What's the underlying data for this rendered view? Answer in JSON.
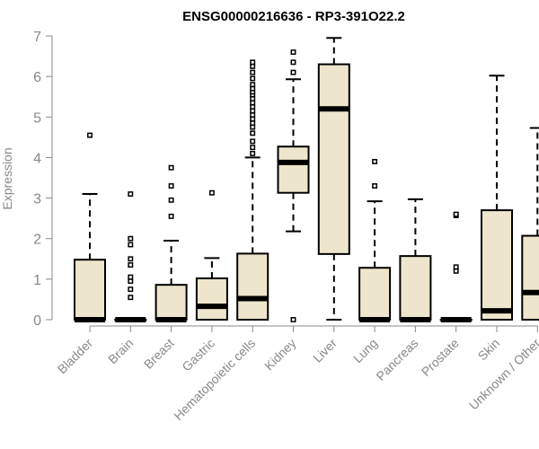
{
  "chart_data": {
    "type": "boxplot",
    "title": "ENSG00000216636 - RP3-391O22.2",
    "xlabel": "",
    "ylabel": "Expression",
    "ylim": [
      0,
      7
    ],
    "yticks": [
      0,
      1,
      2,
      3,
      4,
      5,
      6,
      7
    ],
    "grid": false,
    "categories": [
      "Bladder",
      "Brain",
      "Breast",
      "Gastric",
      "Hematopoietic cells",
      "Kidney",
      "Liver",
      "Lung",
      "Pancreas",
      "Prostate",
      "Skin",
      "Unknown / Other"
    ],
    "boxes": [
      {
        "category": "Bladder",
        "whisker_low": 0,
        "q1": 0,
        "median": 0,
        "q3": 1.48,
        "whisker_high": 3.1,
        "outliers": [
          4.55
        ]
      },
      {
        "category": "Brain",
        "whisker_low": 0,
        "q1": 0,
        "median": 0,
        "q3": 0,
        "whisker_high": 0,
        "outliers": [
          0.55,
          0.75,
          0.95,
          1.05,
          1.35,
          1.5,
          1.85,
          2.0,
          3.1
        ]
      },
      {
        "category": "Breast",
        "whisker_low": 0,
        "q1": 0,
        "median": 0,
        "q3": 0.86,
        "whisker_high": 1.95,
        "outliers": [
          2.55,
          2.95,
          3.3,
          3.75
        ]
      },
      {
        "category": "Gastric",
        "whisker_low": 0,
        "q1": 0,
        "median": 0.33,
        "q3": 1.02,
        "whisker_high": 1.52,
        "outliers": [
          3.13
        ]
      },
      {
        "category": "Hematopoietic cells",
        "whisker_low": 0,
        "q1": 0,
        "median": 0.52,
        "q3": 1.63,
        "whisker_high": 4.0,
        "outliers": [
          4.1,
          4.25,
          4.4,
          4.6,
          4.75,
          4.85,
          4.95,
          5.05,
          5.15,
          5.25,
          5.35,
          5.45,
          5.55,
          5.62,
          5.7,
          5.8,
          5.95,
          6.1,
          6.25,
          6.35
        ]
      },
      {
        "category": "Kidney",
        "whisker_low": 2.18,
        "q1": 3.13,
        "median": 3.88,
        "q3": 4.27,
        "whisker_high": 5.93,
        "outliers": [
          0,
          6.1,
          6.35,
          6.6
        ]
      },
      {
        "category": "Liver",
        "whisker_low": 0,
        "q1": 1.62,
        "median": 5.2,
        "q3": 6.3,
        "whisker_high": 6.95,
        "outliers": []
      },
      {
        "category": "Lung",
        "whisker_low": 0,
        "q1": 0,
        "median": 0,
        "q3": 1.28,
        "whisker_high": 2.92,
        "outliers": [
          3.3,
          3.9
        ]
      },
      {
        "category": "Pancreas",
        "whisker_low": 0,
        "q1": 0,
        "median": 0,
        "q3": 1.57,
        "whisker_high": 2.97,
        "outliers": []
      },
      {
        "category": "Prostate",
        "whisker_low": 0,
        "q1": 0,
        "median": 0,
        "q3": 0,
        "whisker_high": 0,
        "outliers": [
          1.2,
          1.3,
          2.57,
          2.6
        ]
      },
      {
        "category": "Skin",
        "whisker_low": 0,
        "q1": 0,
        "median": 0.22,
        "q3": 2.7,
        "whisker_high": 6.02,
        "outliers": []
      },
      {
        "category": "Unknown / Other",
        "whisker_low": 0,
        "q1": 0,
        "median": 0.67,
        "q3": 2.07,
        "whisker_high": 4.73,
        "outliers": []
      }
    ],
    "colors": {
      "box_fill": "#ede6cc",
      "stroke": "#000000",
      "axis": "#888888",
      "tick_text": "#888888",
      "title": "#000000"
    }
  }
}
